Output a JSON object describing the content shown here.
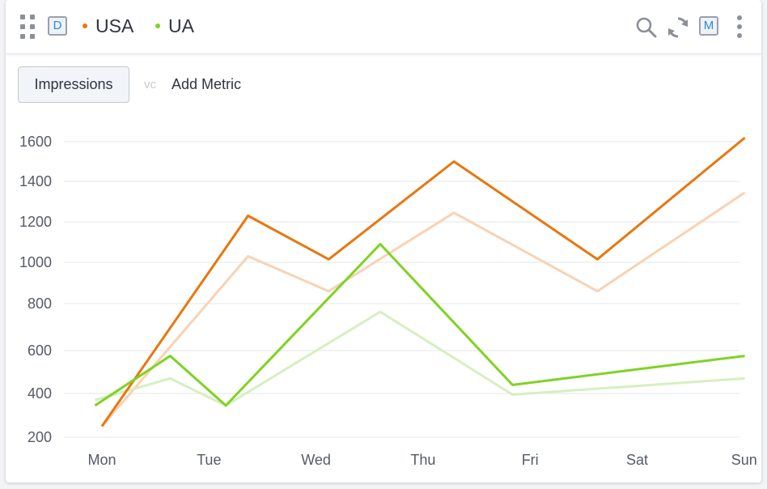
{
  "header": {
    "dashboard_badge": "D",
    "more_badge": "M",
    "icons": [
      "drag-handle-icon",
      "search-icon",
      "refresh-icon",
      "more-vertical-icon"
    ]
  },
  "legend": [
    {
      "label": "USA",
      "color": "#e8770e"
    },
    {
      "label": "UA",
      "color": "#7ed321"
    }
  ],
  "toolbar": {
    "metric_label": "Impressions",
    "vs_label": "vc",
    "add_metric_label": "Add Metric"
  },
  "chart_data": {
    "type": "line",
    "categories": [
      "Mon",
      "Tue",
      "Wed",
      "Thu",
      "Fri",
      "Sat",
      "Sun"
    ],
    "yticks": [
      {
        "label": "1600",
        "value": 1600
      },
      {
        "label": "1400",
        "value": 1400
      },
      {
        "label": "1200",
        "value": 1200
      },
      {
        "label": "1000",
        "value": 1000
      },
      {
        "label": "800",
        "value": 800
      },
      {
        "label": "600",
        "value": 600
      },
      {
        "label": "400",
        "value": 400
      },
      {
        "label": "200",
        "value": 200
      }
    ],
    "series": [
      {
        "name": "USA",
        "color": "#e8770e",
        "points": [
          [
            0,
            250
          ],
          [
            1.05,
            1230
          ],
          [
            1.63,
            1015
          ],
          [
            2.53,
            1500
          ],
          [
            3.56,
            1015
          ],
          [
            4.62,
            1620
          ]
        ]
      },
      {
        "name": "USA (vc)",
        "color": "#f7d3b3",
        "points": [
          [
            0,
            250
          ],
          [
            1.05,
            1030
          ],
          [
            1.63,
            860
          ],
          [
            2.53,
            1245
          ],
          [
            3.56,
            860
          ],
          [
            4.62,
            1345
          ]
        ]
      },
      {
        "name": "UA",
        "color": "#7ed321",
        "points": [
          [
            -0.05,
            345
          ],
          [
            0.49,
            575
          ],
          [
            0.89,
            345
          ],
          [
            2.0,
            1090
          ],
          [
            2.95,
            440
          ],
          [
            4.62,
            575
          ]
        ]
      },
      {
        "name": "UA (vc)",
        "color": "#d6efc0",
        "points": [
          [
            -0.05,
            370
          ],
          [
            0.49,
            470
          ],
          [
            0.89,
            345
          ],
          [
            2.0,
            765
          ],
          [
            2.95,
            395
          ],
          [
            4.62,
            470
          ]
        ]
      }
    ],
    "title": "",
    "xlabel": "",
    "ylabel": ""
  }
}
